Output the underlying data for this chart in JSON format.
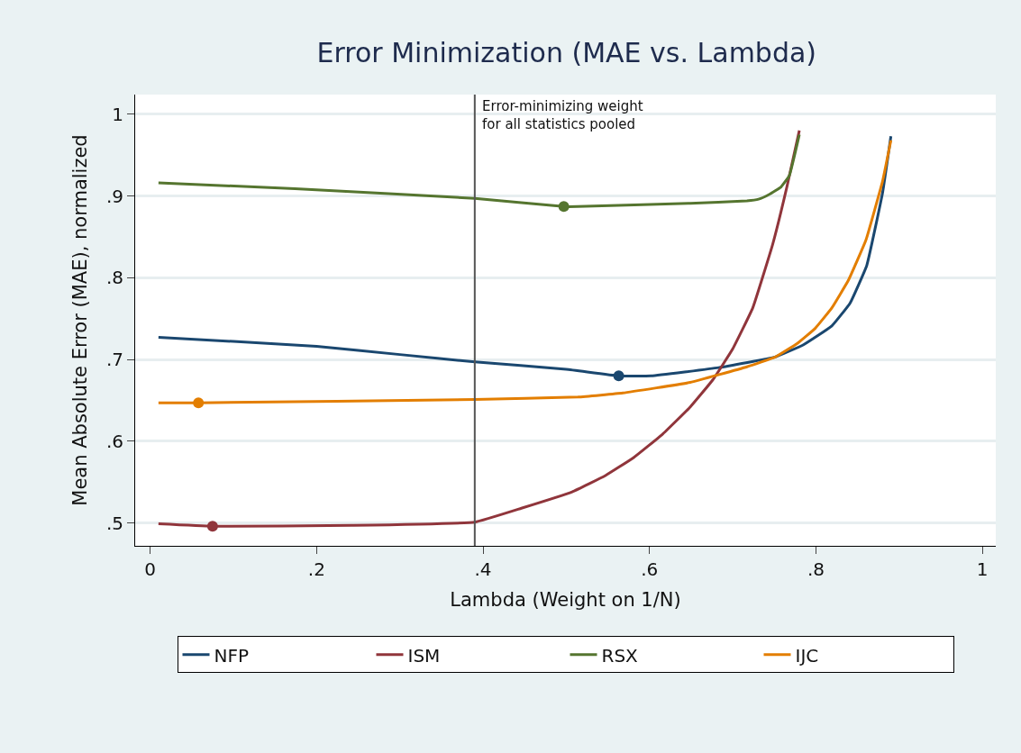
{
  "chart_data": {
    "type": "line",
    "title": "Error Minimization (MAE vs. Lambda)",
    "xlabel": "Lambda (Weight on 1/N)",
    "ylabel": "Mean Absolute Error (MAE), normalized",
    "xlim": [
      -0.018,
      1.016
    ],
    "ylim": [
      0.472,
      1.024
    ],
    "xticks": [
      0,
      {
        "value": 0.2,
        "label": ".2"
      },
      {
        "value": 0.4,
        "label": ".4"
      },
      {
        "value": 0.6,
        "label": ".6"
      },
      {
        "value": 0.8,
        "label": ".8"
      },
      1
    ],
    "yticks": [
      {
        "value": 0.5,
        "label": ".5"
      },
      {
        "value": 0.6,
        "label": ".6"
      },
      {
        "value": 0.7,
        "label": ".7"
      },
      {
        "value": 0.8,
        "label": ".8"
      },
      {
        "value": 0.9,
        "label": ".9"
      },
      1
    ],
    "grid": "y",
    "legend": "bottom",
    "marker": "none",
    "line_style": "solid",
    "ref_lines": [
      {
        "axis": "x",
        "value": 0.39,
        "label": "Error-minimizing weight\nfor all statistics pooled",
        "color": "#555555"
      }
    ],
    "series": [
      {
        "name": "NFP",
        "color": "#1a476f",
        "x": [
          0.01,
          0.1,
          0.2,
          0.3,
          0.39,
          0.5,
          0.563,
          0.602,
          0.683,
          0.751,
          0.785,
          0.819,
          0.841,
          0.861,
          0.88,
          0.89
        ],
        "values": [
          0.727,
          0.722,
          0.716,
          0.706,
          0.697,
          0.688,
          0.68,
          0.68,
          0.69,
          0.703,
          0.718,
          0.741,
          0.769,
          0.815,
          0.904,
          0.973
        ]
      },
      {
        "name": "ISM",
        "color": "#90353b",
        "x": [
          0.01,
          0.075,
          0.242,
          0.39,
          0.446,
          0.507,
          0.547,
          0.581,
          0.615,
          0.649,
          0.676,
          0.7,
          0.724,
          0.748,
          0.765,
          0.78
        ],
        "values": [
          0.499,
          0.496,
          0.497,
          0.501,
          0.518,
          0.538,
          0.558,
          0.58,
          0.608,
          0.642,
          0.675,
          0.713,
          0.763,
          0.841,
          0.911,
          0.98
        ]
      },
      {
        "name": "RSX",
        "color": "#55752f",
        "x": [
          0.01,
          0.174,
          0.39,
          0.497,
          0.514,
          0.649,
          0.717,
          0.731,
          0.744,
          0.758,
          0.768,
          0.78
        ],
        "values": [
          0.916,
          0.909,
          0.897,
          0.887,
          0.887,
          0.891,
          0.894,
          0.896,
          0.902,
          0.911,
          0.925,
          0.975
        ]
      },
      {
        "name": "IJC",
        "color": "#e37e00",
        "x": [
          0.01,
          0.058,
          0.39,
          0.514,
          0.568,
          0.649,
          0.717,
          0.751,
          0.778,
          0.799,
          0.819,
          0.839,
          0.86,
          0.88,
          0.89
        ],
        "values": [
          0.647,
          0.647,
          0.651,
          0.654,
          0.659,
          0.672,
          0.691,
          0.703,
          0.72,
          0.738,
          0.763,
          0.797,
          0.846,
          0.918,
          0.968
        ]
      },
      {
        "type": "scatter",
        "marker": "circle",
        "color": "#1a476f",
        "x": [
          0.563
        ],
        "values": [
          0.68
        ]
      },
      {
        "type": "scatter",
        "marker": "circle",
        "color": "#90353b",
        "x": [
          0.075
        ],
        "values": [
          0.496
        ]
      },
      {
        "type": "scatter",
        "marker": "circle",
        "color": "#55752f",
        "x": [
          0.497
        ],
        "values": [
          0.887
        ]
      },
      {
        "type": "scatter",
        "marker": "circle",
        "color": "#e37e00",
        "x": [
          0.058
        ],
        "values": [
          0.647
        ]
      }
    ]
  }
}
